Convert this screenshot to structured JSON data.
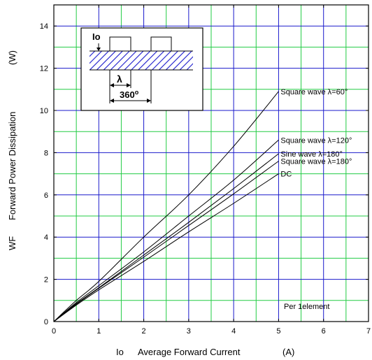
{
  "chart_data": {
    "type": "line",
    "xlabel_symbol": "Io",
    "xlabel_text": "Average Forward Current",
    "xlabel_unit": "(A)",
    "ylabel_symbol": "WF",
    "ylabel_text": "Forward Power Dissipation",
    "ylabel_unit": "(W)",
    "xlim": [
      0,
      7
    ],
    "ylim": [
      0,
      15
    ],
    "x_ticks": [
      0,
      1,
      2,
      3,
      4,
      5,
      6,
      7
    ],
    "y_ticks": [
      0,
      2,
      4,
      6,
      8,
      10,
      12,
      14
    ],
    "grid": true,
    "grid_major_color": "#1a1acc",
    "grid_minor_color": "#22cc44",
    "annotation": "Per 1element",
    "series": [
      {
        "name": "Square wave λ=60°",
        "x": [
          0,
          0.5,
          1,
          2,
          3,
          4,
          5
        ],
        "y": [
          0,
          1.0,
          1.9,
          4.0,
          6.0,
          8.3,
          10.9
        ]
      },
      {
        "name": "Square wave λ=120°",
        "x": [
          0,
          0.5,
          1,
          2,
          3,
          4,
          5
        ],
        "y": [
          0,
          0.9,
          1.7,
          3.3,
          5.0,
          6.7,
          8.6
        ]
      },
      {
        "name": "Sine wave λ=180°",
        "x": [
          0,
          0.5,
          1,
          2,
          3,
          4,
          5
        ],
        "y": [
          0,
          0.85,
          1.6,
          3.15,
          4.7,
          6.3,
          7.95
        ]
      },
      {
        "name": "Square wave λ=180°",
        "x": [
          0,
          0.5,
          1,
          2,
          3,
          4,
          5
        ],
        "y": [
          0,
          0.82,
          1.58,
          3.05,
          4.55,
          6.05,
          7.6
        ]
      },
      {
        "name": "DC",
        "x": [
          0,
          0.5,
          1,
          2,
          3,
          4,
          5
        ],
        "y": [
          0,
          0.78,
          1.5,
          2.85,
          4.25,
          5.6,
          7.0
        ]
      }
    ],
    "inset": {
      "io_label": "Io",
      "lambda_label": "λ",
      "period_label": "360",
      "period_unit": "o"
    }
  }
}
